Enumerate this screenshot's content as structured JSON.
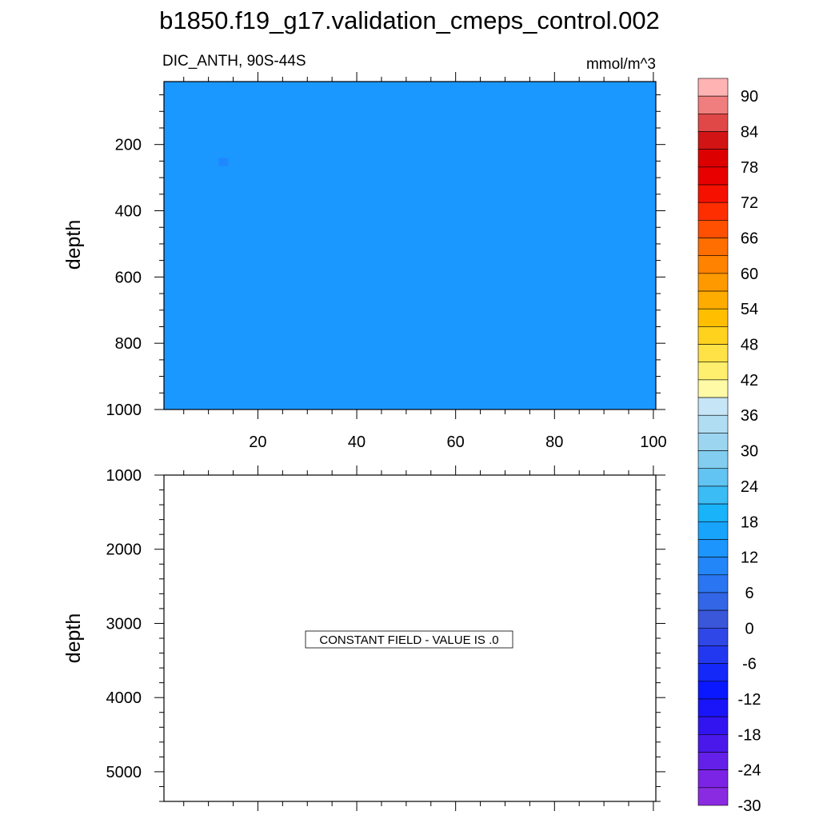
{
  "title": "b1850.f19_g17.validation_cmeps_control.002",
  "chart_data": [
    {
      "type": "heatmap",
      "left_title": "DIC_ANTH, 90S-44S",
      "right_title": "mmol/m^3",
      "ylabel": "depth",
      "xlim": [
        1,
        100.5
      ],
      "ylim": [
        1000,
        10
      ],
      "x_ticks": [
        20,
        40,
        60,
        80,
        100
      ],
      "y_ticks": [
        200,
        400,
        600,
        800,
        1000
      ],
      "fill_color": "#1a98ff",
      "anomaly_cells": [
        {
          "x": [
            12,
            14
          ],
          "y": [
            240,
            265
          ],
          "color": "#2088ff"
        }
      ]
    },
    {
      "type": "heatmap",
      "ylabel": "depth",
      "xlim": [
        1,
        100.5
      ],
      "ylim": [
        1000,
        5400
      ],
      "x_ticks": [
        20,
        40,
        60,
        80,
        100
      ],
      "y_ticks": [
        1000,
        2000,
        3000,
        4000,
        5000
      ],
      "message": "CONSTANT FIELD - VALUE IS .0"
    }
  ],
  "colorbar": {
    "tick_labels": [
      "90",
      "84",
      "78",
      "72",
      "66",
      "60",
      "54",
      "48",
      "42",
      "36",
      "30",
      "24",
      "18",
      "12",
      "6",
      "0",
      "-6",
      "-12",
      "-18",
      "-24",
      "-30"
    ],
    "colors": [
      "#ffb3b3",
      "#f07e7e",
      "#e04848",
      "#d21414",
      "#dc0000",
      "#e80000",
      "#f51000",
      "#ff2e00",
      "#ff4f00",
      "#ff6e00",
      "#ff8300",
      "#ff9900",
      "#ffac00",
      "#ffbf00",
      "#ffd21e",
      "#ffe245",
      "#ffef6e",
      "#fffaa5",
      "#c6e5f6",
      "#b0ddf2",
      "#9cd5f0",
      "#82cdf0",
      "#62c4f2",
      "#3bbcf5",
      "#18b3f8",
      "#18a4fb",
      "#1c95fc",
      "#2286f8",
      "#2a76f2",
      "#3266e6",
      "#3a57da",
      "#2f47e6",
      "#2238f0",
      "#1428f8",
      "#0a18ff",
      "#1a14f8",
      "#3214f0",
      "#4a18ea",
      "#6420e8",
      "#7c24e6",
      "#8a2be2"
    ]
  }
}
